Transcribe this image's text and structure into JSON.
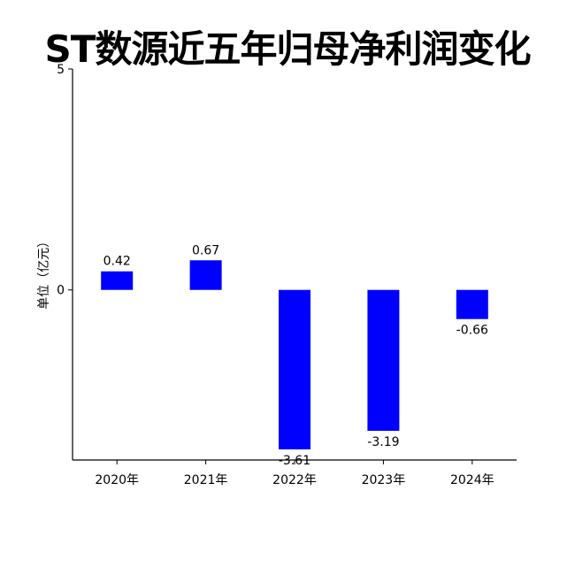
{
  "chart_data": {
    "type": "bar",
    "title": "ST数源近五年归母净利润变化",
    "ylabel": "单位（亿元）",
    "xlabel": "",
    "categories": [
      "2020年",
      "2021年",
      "2022年",
      "2023年",
      "2024年"
    ],
    "values": [
      0.42,
      0.67,
      -3.61,
      -3.19,
      -0.66
    ],
    "value_labels": [
      "0.42",
      "0.67",
      "-3.61",
      "-3.19",
      "-0.66"
    ],
    "ylim": [
      -3.85,
      5
    ],
    "yticks": [
      0,
      5
    ],
    "ytick_labels": [
      "0",
      "5"
    ],
    "bar_color": "#0000ff",
    "grid": false,
    "legend": "none"
  }
}
